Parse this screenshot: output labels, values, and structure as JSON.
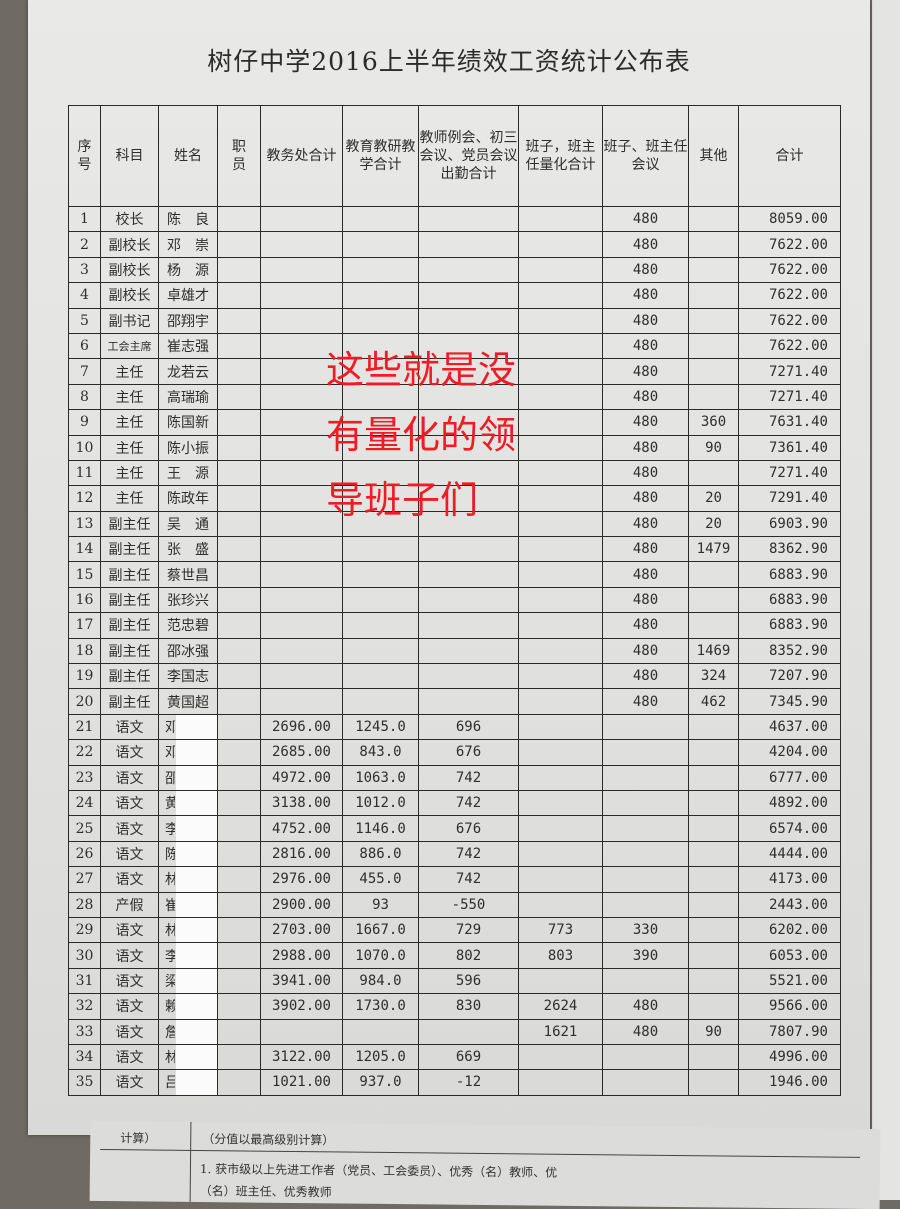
{
  "title": "树仔中学2016上半年绩效工资统计公布表",
  "headers": [
    "序号",
    "科目",
    "姓名",
    "职员",
    "教务处合计",
    "教育教研教学合计",
    "教师例会、初三会议、党员会议出勤合计",
    "班子，班主任量化合计",
    "班子、班主任会议",
    "其他",
    "合计"
  ],
  "rows": [
    [
      "1",
      "校长",
      "陈　良",
      "",
      "",
      "",
      "",
      "",
      "480",
      "",
      "8059.00"
    ],
    [
      "2",
      "副校长",
      "邓　崇",
      "",
      "",
      "",
      "",
      "",
      "480",
      "",
      "7622.00"
    ],
    [
      "3",
      "副校长",
      "杨　源",
      "",
      "",
      "",
      "",
      "",
      "480",
      "",
      "7622.00"
    ],
    [
      "4",
      "副校长",
      "卓雄才",
      "",
      "",
      "",
      "",
      "",
      "480",
      "",
      "7622.00"
    ],
    [
      "5",
      "副书记",
      "邵翔宇",
      "",
      "",
      "",
      "",
      "",
      "480",
      "",
      "7622.00"
    ],
    [
      "6",
      "工会主席",
      "崔志强",
      "",
      "",
      "",
      "",
      "",
      "480",
      "",
      "7622.00"
    ],
    [
      "7",
      "主任",
      "龙若云",
      "",
      "",
      "",
      "",
      "",
      "480",
      "",
      "7271.40"
    ],
    [
      "8",
      "主任",
      "高瑞瑜",
      "",
      "",
      "",
      "",
      "",
      "480",
      "",
      "7271.40"
    ],
    [
      "9",
      "主任",
      "陈国新",
      "",
      "",
      "",
      "",
      "",
      "480",
      "360",
      "7631.40"
    ],
    [
      "10",
      "主任",
      "陈小振",
      "",
      "",
      "",
      "",
      "",
      "480",
      "90",
      "7361.40"
    ],
    [
      "11",
      "主任",
      "王　源",
      "",
      "",
      "",
      "",
      "",
      "480",
      "",
      "7271.40"
    ],
    [
      "12",
      "主任",
      "陈政年",
      "",
      "",
      "",
      "",
      "",
      "480",
      "20",
      "7291.40"
    ],
    [
      "13",
      "副主任",
      "吴　通",
      "",
      "",
      "",
      "",
      "",
      "480",
      "20",
      "6903.90"
    ],
    [
      "14",
      "副主任",
      "张　盛",
      "",
      "",
      "",
      "",
      "",
      "480",
      "1479",
      "8362.90"
    ],
    [
      "15",
      "副主任",
      "蔡世昌",
      "",
      "",
      "",
      "",
      "",
      "480",
      "",
      "6883.90"
    ],
    [
      "16",
      "副主任",
      "张珍兴",
      "",
      "",
      "",
      "",
      "",
      "480",
      "",
      "6883.90"
    ],
    [
      "17",
      "副主任",
      "范忠碧",
      "",
      "",
      "",
      "",
      "",
      "480",
      "",
      "6883.90"
    ],
    [
      "18",
      "副主任",
      "邵冰强",
      "",
      "",
      "",
      "",
      "",
      "480",
      "1469",
      "8352.90"
    ],
    [
      "19",
      "副主任",
      "李国志",
      "",
      "",
      "",
      "",
      "",
      "480",
      "324",
      "7207.90"
    ],
    [
      "20",
      "副主任",
      "黄国超",
      "",
      "",
      "",
      "",
      "",
      "480",
      "462",
      "7345.90"
    ],
    [
      "21",
      "语文",
      "邓",
      "",
      "2696.00",
      "1245.0",
      "696",
      "",
      "",
      "",
      "4637.00"
    ],
    [
      "22",
      "语文",
      "邓",
      "",
      "2685.00",
      "843.0",
      "676",
      "",
      "",
      "",
      "4204.00"
    ],
    [
      "23",
      "语文",
      "邵",
      "",
      "4972.00",
      "1063.0",
      "742",
      "",
      "",
      "",
      "6777.00"
    ],
    [
      "24",
      "语文",
      "黄",
      "",
      "3138.00",
      "1012.0",
      "742",
      "",
      "",
      "",
      "4892.00"
    ],
    [
      "25",
      "语文",
      "李",
      "",
      "4752.00",
      "1146.0",
      "676",
      "",
      "",
      "",
      "6574.00"
    ],
    [
      "26",
      "语文",
      "陈",
      "",
      "2816.00",
      "886.0",
      "742",
      "",
      "",
      "",
      "4444.00"
    ],
    [
      "27",
      "语文",
      "林",
      "",
      "2976.00",
      "455.0",
      "742",
      "",
      "",
      "",
      "4173.00"
    ],
    [
      "28",
      "产假",
      "崔",
      "",
      "2900.00",
      "93",
      "-550",
      "",
      "",
      "",
      "2443.00"
    ],
    [
      "29",
      "语文",
      "林",
      "",
      "2703.00",
      "1667.0",
      "729",
      "773",
      "330",
      "",
      "6202.00"
    ],
    [
      "30",
      "语文",
      "李",
      "",
      "2988.00",
      "1070.0",
      "802",
      "803",
      "390",
      "",
      "6053.00"
    ],
    [
      "31",
      "语文",
      "梁",
      "",
      "3941.00",
      "984.0",
      "596",
      "",
      "",
      "",
      "5521.00"
    ],
    [
      "32",
      "语文",
      "赖",
      "",
      "3902.00",
      "1730.0",
      "830",
      "2624",
      "480",
      "",
      "9566.00"
    ],
    [
      "33",
      "语文",
      "詹",
      "",
      "",
      "",
      "",
      "1621",
      "480",
      "90",
      "7807.90"
    ],
    [
      "34",
      "语文",
      "林",
      "",
      "3122.00",
      "1205.0",
      "669",
      "",
      "",
      "",
      "4996.00"
    ],
    [
      "35",
      "语文",
      "吕",
      "",
      "1021.00",
      "937.0",
      "-12",
      "",
      "",
      "",
      "1946.00"
    ]
  ],
  "annotation": [
    "这些就是没",
    "有量化的领",
    "导班子们"
  ],
  "bottom_sheet": {
    "left_cell": "计算）",
    "line1": "（分值以最高级别计算）",
    "line2": "1. 获市级以上先进工作者（党员、工会委员）、优秀（名）教师、优",
    "line3": "（名）班主任、优秀教师"
  },
  "colors": {
    "annotation": "#ee1c25",
    "paper": "#e4e4e2",
    "background": "#6f6a63"
  }
}
